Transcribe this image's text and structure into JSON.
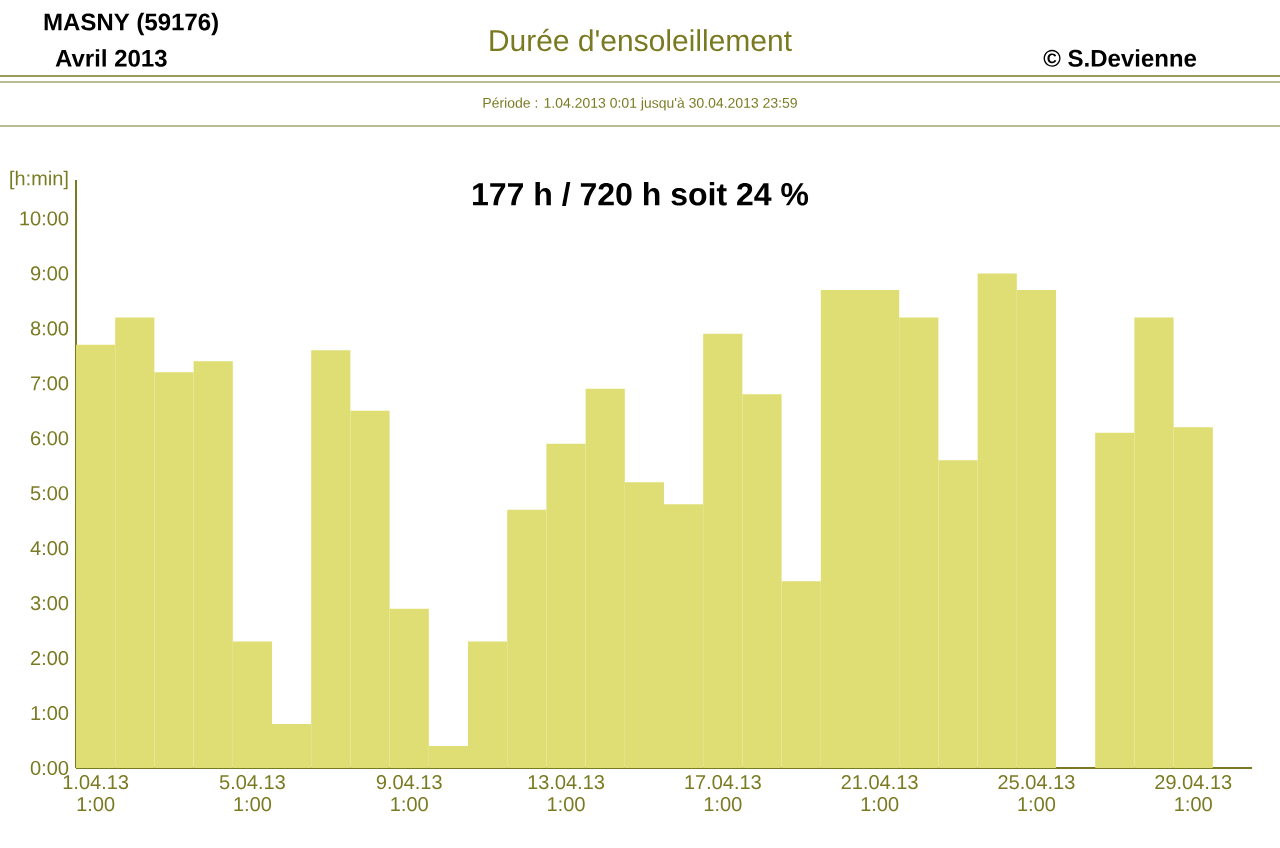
{
  "chart_data": {
    "type": "bar",
    "title": "Durée d'ensoleillement",
    "subtitle": "Période :  1.04.2013   0:01   jusqu'à  30.04.2013   23:59",
    "ylabel": "[h:min]",
    "annotations": [
      "MASNY (59176)",
      "Avril  2013",
      "© S.Devienne",
      "177 h / 720 h  soit  24 %"
    ],
    "categories": [
      "1.04.13 1:00",
      null,
      null,
      null,
      "5.04.13 1:00",
      null,
      null,
      null,
      "9.04.13 1:00",
      null,
      null,
      null,
      "13.04.13 1:00",
      null,
      null,
      null,
      "17.04.13 1:00",
      null,
      null,
      null,
      "21.04.13 1:00",
      null,
      null,
      null,
      "25.04.13 1:00",
      null,
      null,
      null,
      "29.04.13 1:00",
      null
    ],
    "values": [
      7.7,
      8.2,
      7.2,
      7.4,
      2.3,
      0.8,
      7.6,
      6.5,
      2.9,
      0.4,
      2.3,
      4.7,
      5.9,
      6.9,
      5.2,
      4.8,
      7.9,
      6.8,
      3.4,
      8.7,
      8.7,
      8.2,
      5.6,
      9.0,
      8.7,
      0,
      6.1,
      8.2,
      6.2,
      0
    ],
    "color": "#dede74",
    "ylim": [
      0,
      10.7
    ],
    "yticks": [
      {
        "value": 0,
        "label": "0:00"
      },
      {
        "value": 1,
        "label": "1:00"
      },
      {
        "value": 2,
        "label": "2:00"
      },
      {
        "value": 3,
        "label": "3:00"
      },
      {
        "value": 4,
        "label": "4:00"
      },
      {
        "value": 5,
        "label": "5:00"
      },
      {
        "value": 6,
        "label": "6:00"
      },
      {
        "value": 7,
        "label": "7:00"
      },
      {
        "value": 8,
        "label": "8:00"
      },
      {
        "value": 9,
        "label": "9:00"
      },
      {
        "value": 10,
        "label": "10:00"
      }
    ]
  }
}
